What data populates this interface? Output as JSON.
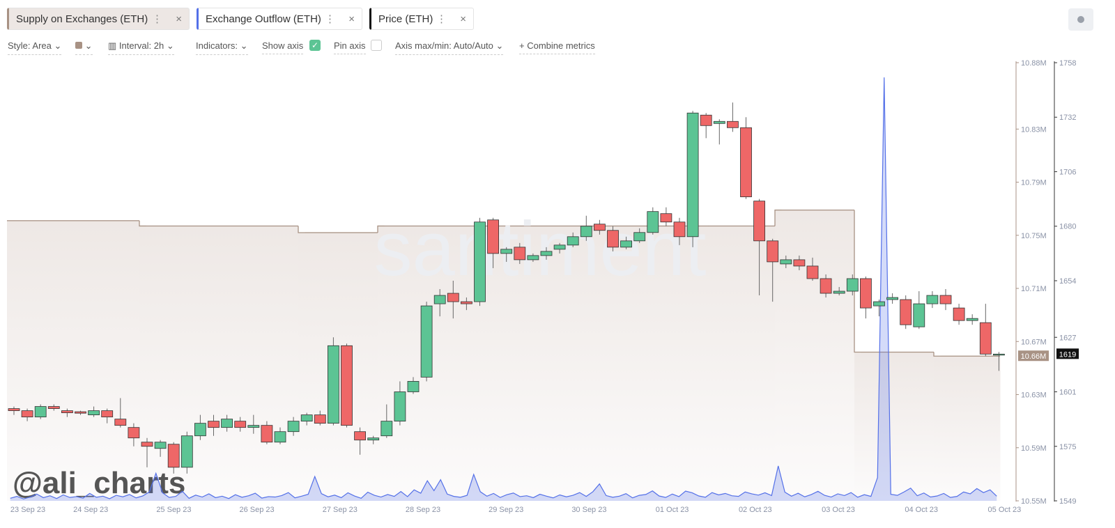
{
  "toolbar": {
    "style": "Style: Area",
    "interval": "Interval: 2h",
    "indicators": "Indicators:",
    "show_axis": "Show axis",
    "pin_axis": "Pin axis",
    "axis_minmax": "Axis max/min: Auto/Auto",
    "combine": "Combine metrics"
  },
  "watermark": "santiment",
  "signature": "@ali_charts",
  "chart_data": {
    "type": "candlestick",
    "x_labels": [
      "23 Sep 23",
      "24 Sep 23",
      "25 Sep 23",
      "26 Sep 23",
      "27 Sep 23",
      "28 Sep 23",
      "29 Sep 23",
      "30 Sep 23",
      "01 Oct 23",
      "02 Oct 23",
      "03 Oct 23",
      "04 Oct 23",
      "05 Oct 23"
    ],
    "series": [
      {
        "name": "Supply on Exchanges (ETH)",
        "color": "#a89284",
        "axis": "y2",
        "last_label": "10.66M",
        "values": [
          10.761,
          10.761,
          10.761,
          10.761,
          10.761,
          10.761,
          10.761,
          10.761,
          10.761,
          10.761,
          10.761,
          10.761,
          10.761,
          10.761,
          10.761,
          10.761,
          10.761,
          10.761,
          10.761,
          10.761,
          10.757,
          10.757,
          10.757,
          10.757,
          10.757,
          10.757,
          10.757,
          10.757,
          10.757,
          10.757,
          10.757,
          10.757,
          10.757,
          10.757,
          10.757,
          10.757,
          10.757,
          10.757,
          10.757,
          10.757,
          10.757,
          10.757,
          10.757,
          10.757,
          10.752,
          10.752,
          10.752,
          10.752,
          10.752,
          10.752,
          10.752,
          10.752,
          10.752,
          10.752,
          10.752,
          10.752,
          10.757,
          10.757,
          10.757,
          10.757,
          10.757,
          10.757,
          10.757,
          10.757,
          10.757,
          10.757,
          10.757,
          10.757,
          10.757,
          10.757,
          10.757,
          10.757,
          10.757,
          10.757,
          10.757,
          10.757,
          10.757,
          10.757,
          10.757,
          10.757,
          10.757,
          10.757,
          10.757,
          10.757,
          10.757,
          10.757,
          10.757,
          10.757,
          10.757,
          10.757,
          10.757,
          10.757,
          10.757,
          10.757,
          10.757,
          10.757,
          10.757,
          10.757,
          10.757,
          10.757,
          10.757,
          10.757,
          10.757,
          10.757,
          10.757,
          10.757,
          10.757,
          10.757,
          10.757,
          10.757,
          10.757,
          10.757,
          10.757,
          10.757,
          10.757,
          10.757,
          10.769,
          10.769,
          10.769,
          10.769,
          10.769,
          10.769,
          10.769,
          10.769,
          10.769,
          10.769,
          10.769,
          10.769,
          10.662,
          10.662,
          10.662,
          10.662,
          10.662,
          10.662,
          10.662,
          10.662,
          10.662,
          10.662,
          10.662,
          10.662,
          10.659,
          10.659,
          10.659,
          10.659,
          10.659,
          10.659,
          10.659,
          10.659,
          10.659,
          10.659
        ]
      },
      {
        "name": "Exchange Outflow (ETH)",
        "color": "#5470e8",
        "axis": "y3",
        "values": [
          1200,
          2100,
          900,
          1800,
          3200,
          1500,
          2400,
          1100,
          2800,
          1600,
          2000,
          1300,
          3500,
          1700,
          2200,
          1000,
          2600,
          1900,
          3000,
          1400,
          2300,
          4200,
          13000,
          3800,
          1600,
          2100,
          4500,
          1200,
          2700,
          1800,
          3300,
          1500,
          2200,
          1100,
          2900,
          1700,
          2400,
          3600,
          1300,
          2000,
          1800,
          2500,
          3900,
          1400,
          2200,
          3100,
          11500,
          3400,
          1900,
          2700,
          1500,
          3800,
          2300,
          1200,
          4100,
          2600,
          1800,
          3000,
          2100,
          4400,
          2000,
          5200,
          3600,
          9500,
          4800,
          10000,
          3200,
          2100,
          1700,
          2600,
          12500,
          4300,
          2200,
          3500,
          1600,
          2900,
          3700,
          2000,
          2400,
          1500,
          3100,
          2200,
          1400,
          2800,
          1900,
          2600,
          3900,
          2100,
          4300,
          8000,
          2500,
          1700,
          2200,
          3400,
          1400,
          2600,
          3000,
          4700,
          2300,
          1600,
          3200,
          2000,
          4600,
          3800,
          2300,
          1700,
          3900,
          2800,
          3500,
          2400,
          2100,
          4200,
          3300,
          2700,
          3800,
          2500,
          16500,
          4100,
          2200,
          3600,
          1900,
          3000,
          4500,
          2600,
          1800,
          3300,
          2500,
          3900,
          1700,
          2900,
          2100,
          11000,
          200000,
          3100,
          2600,
          4200,
          6000,
          2400,
          3700,
          1800,
          2300,
          3500,
          1600,
          2100,
          4200,
          3300,
          5800,
          3900,
          5200,
          2200
        ]
      }
    ],
    "price": {
      "name": "Price (ETH)",
      "up_color": "#5cc494",
      "down_color": "#ee6767",
      "open": [
        1593,
        1592,
        1589,
        1594,
        1592,
        1591.5,
        1590,
        1592,
        1588,
        1584,
        1577,
        1574,
        1576,
        1565,
        1580,
        1587,
        1584,
        1587,
        1584,
        1585,
        1577,
        1582,
        1587,
        1590,
        1586,
        1623,
        1582,
        1578,
        1580,
        1587,
        1601,
        1608,
        1643,
        1648,
        1644,
        1644,
        1683,
        1667,
        1670,
        1664,
        1666,
        1669,
        1671,
        1675,
        1681,
        1678,
        1670,
        1673,
        1677,
        1686,
        1682,
        1675,
        1733,
        1729,
        1730,
        1727,
        1692,
        1673,
        1662,
        1664,
        1661,
        1655,
        1648,
        1649,
        1655,
        1642,
        1645,
        1645,
        1632,
        1643,
        1647,
        1641,
        1635,
        1634,
        1619
      ],
      "high": [
        1594,
        1593,
        1595,
        1595,
        1593,
        1592,
        1594,
        1593,
        1598,
        1586,
        1579,
        1578,
        1577,
        1582,
        1590,
        1590,
        1590,
        1589,
        1590,
        1587,
        1584,
        1589,
        1591,
        1592,
        1627,
        1624,
        1584,
        1580,
        1595,
        1606,
        1608,
        1644,
        1650,
        1654,
        1646,
        1684,
        1684,
        1670,
        1672,
        1667,
        1670,
        1672,
        1677,
        1685,
        1683,
        1680,
        1675,
        1679,
        1689,
        1689,
        1684,
        1735,
        1734,
        1731,
        1739,
        1732,
        1693,
        1674,
        1666,
        1666,
        1665,
        1657,
        1651,
        1657,
        1656,
        1645,
        1648,
        1647,
        1649,
        1649,
        1650,
        1643,
        1638,
        1643,
        1620
      ],
      "low": [
        1590,
        1587,
        1588,
        1592,
        1589,
        1590,
        1589,
        1586,
        1584,
        1575,
        1565,
        1570,
        1562,
        1562,
        1578,
        1580,
        1582,
        1582,
        1581,
        1576,
        1576,
        1580,
        1585,
        1585,
        1585,
        1584,
        1571,
        1576,
        1579,
        1585,
        1600,
        1606,
        1637,
        1636,
        1640,
        1642,
        1660,
        1663,
        1662,
        1663,
        1664,
        1667,
        1670,
        1673,
        1676,
        1668,
        1669,
        1672,
        1676,
        1680,
        1671,
        1670,
        1722,
        1719,
        1725,
        1693,
        1647,
        1644,
        1660,
        1659,
        1654,
        1646,
        1647,
        1647,
        1636,
        1637,
        1643,
        1631,
        1631,
        1641,
        1640,
        1633,
        1633,
        1618,
        1611
      ],
      "close": [
        1592,
        1589,
        1594,
        1593,
        1591,
        1590.8,
        1592,
        1589,
        1585,
        1579,
        1575,
        1577,
        1565,
        1580,
        1586,
        1584,
        1588,
        1584,
        1585,
        1577,
        1582,
        1587,
        1590,
        1586,
        1623,
        1585,
        1578,
        1579,
        1587,
        1601,
        1606,
        1642,
        1647,
        1644,
        1643,
        1682,
        1667,
        1669,
        1664,
        1666,
        1668,
        1671,
        1675,
        1680,
        1678,
        1670,
        1673,
        1677,
        1687,
        1682,
        1675,
        1734,
        1728,
        1730,
        1727,
        1694,
        1673,
        1663,
        1664,
        1661,
        1655,
        1648,
        1649,
        1655,
        1641,
        1644,
        1646,
        1633,
        1643,
        1647,
        1643,
        1635,
        1636,
        1619,
        1619
      ]
    },
    "ylim": [
      1549,
      1758
    ],
    "yticks": [
      1549,
      1575,
      1601,
      1627,
      1654,
      1680,
      1706,
      1732,
      1758
    ],
    "y2lim": [
      10.55,
      10.88
    ],
    "y2ticks": [
      {
        "value": 10.55,
        "label": "10.55M"
      },
      {
        "value": 10.59,
        "label": "10.59M"
      },
      {
        "value": 10.63,
        "label": "10.63M"
      },
      {
        "value": 10.67,
        "label": "10.67M"
      },
      {
        "value": 10.71,
        "label": "10.71M"
      },
      {
        "value": 10.75,
        "label": "10.75M"
      },
      {
        "value": 10.79,
        "label": "10.79M"
      },
      {
        "value": 10.83,
        "label": "10.83M"
      },
      {
        "value": 10.88,
        "label": "10.88M"
      }
    ],
    "y3lim": [
      0,
      205000
    ]
  }
}
